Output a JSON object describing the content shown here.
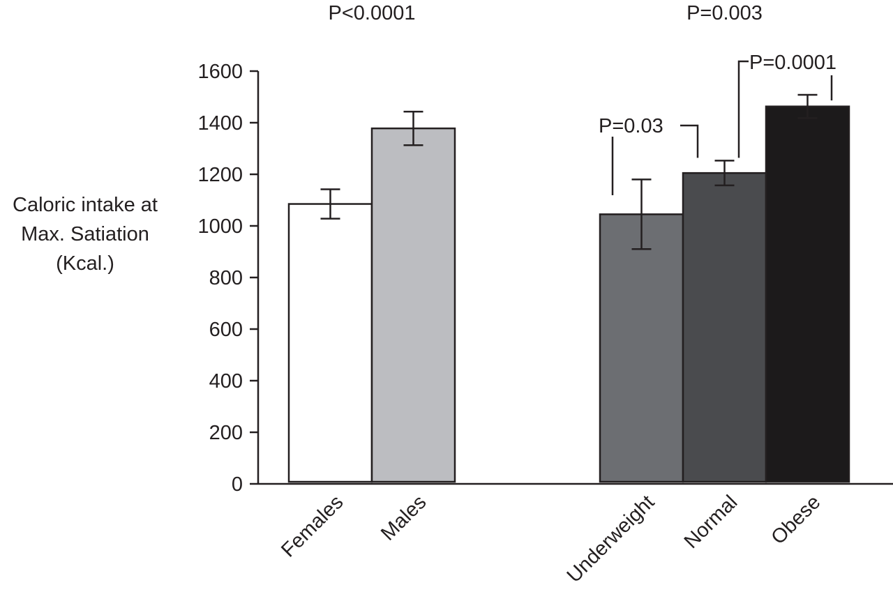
{
  "chart_data": {
    "type": "bar",
    "ylabel": [
      "Caloric intake at",
      "Max. Satiation",
      "(Kcal.)"
    ],
    "ylim": [
      0,
      1600
    ],
    "yticks": [
      0,
      200,
      400,
      600,
      800,
      1000,
      1200,
      1400,
      1600
    ],
    "grid": false,
    "groups": [
      {
        "pvalue_label": "P<0.0001",
        "bars": [
          {
            "category": "Females",
            "value": 1085,
            "error": 57,
            "color": "#ffffff"
          },
          {
            "category": "Males",
            "value": 1378,
            "error": 65,
            "color": "#bcbdc1"
          }
        ]
      },
      {
        "pvalue_label": "P=0.003",
        "bars": [
          {
            "category": "Underweight",
            "value": 1045,
            "error": 135,
            "color": "#6c6e72"
          },
          {
            "category": "Normal",
            "value": 1205,
            "error": 48,
            "color": "#4a4b4e"
          },
          {
            "category": "Obese",
            "value": 1463,
            "error": 45,
            "color": "#1c1a1b"
          }
        ]
      }
    ],
    "pairwise_annotations": [
      {
        "label": "P=0.03",
        "between": [
          "Underweight",
          "Normal"
        ]
      },
      {
        "label": "P=0.0001",
        "between": [
          "Normal",
          "Obese"
        ]
      }
    ]
  }
}
